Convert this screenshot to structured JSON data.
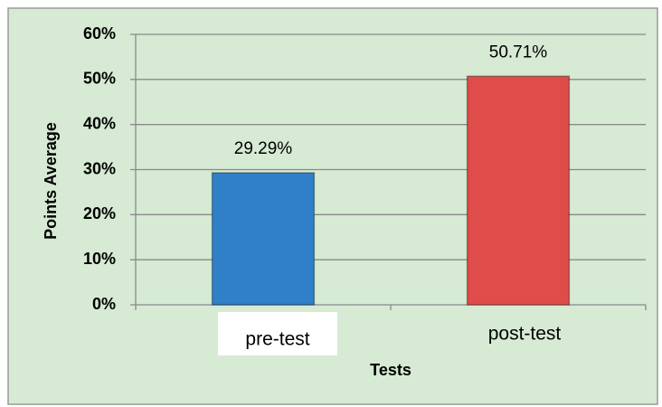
{
  "chart_data": {
    "type": "bar",
    "categories": [
      "pre-test",
      "post-test"
    ],
    "values": [
      29.29,
      50.71
    ],
    "value_labels": [
      "29.29%",
      "50.71%"
    ],
    "colors": [
      "#2f80c8",
      "#e04c4a"
    ],
    "ylabel": "Points Average",
    "xlabel": "Tests",
    "ylim": [
      0,
      60
    ],
    "yticks": [
      {
        "value": 0,
        "label": "0%"
      },
      {
        "value": 10,
        "label": "10%"
      },
      {
        "value": 20,
        "label": "20%"
      },
      {
        "value": 30,
        "label": "30%"
      },
      {
        "value": 40,
        "label": "40%"
      },
      {
        "value": 50,
        "label": "50%"
      },
      {
        "value": 60,
        "label": "60%"
      }
    ],
    "grid": true
  }
}
